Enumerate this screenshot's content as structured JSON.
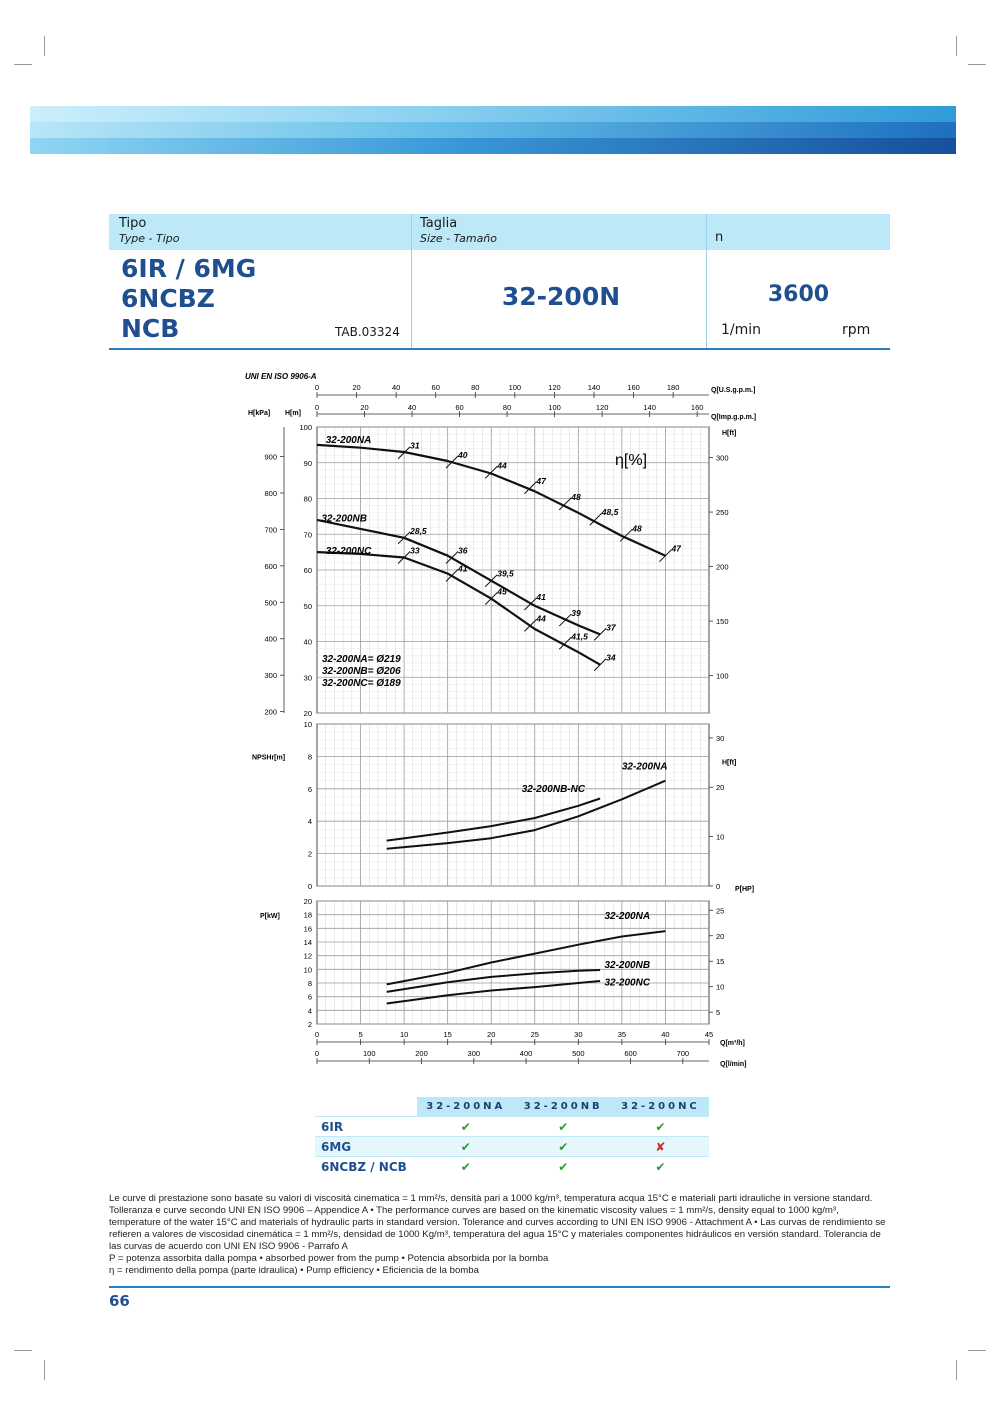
{
  "header": {
    "tipo_label": "Tipo",
    "tipo_sub": "Type - Tipo",
    "tipo_lines": [
      "6IR / 6MG",
      "6NCBZ",
      "NCB"
    ],
    "tab_code": "TAB.03324",
    "taglia_label": "Taglia",
    "taglia_sub": "Size - Tamaño",
    "size_value": "32-200N",
    "n_label": "n",
    "n_value": "3600",
    "n_unit1": "1/min",
    "n_unit2": "rpm"
  },
  "chart_data": {
    "type": "line",
    "standard": "UNI EN ISO 9906-A",
    "x_axes": {
      "q_m3h": {
        "label": "Q[m³/h]",
        "range": [
          0,
          45
        ],
        "ticks": [
          0,
          5,
          10,
          15,
          20,
          25,
          30,
          35,
          40,
          45
        ]
      },
      "q_lmin": {
        "label": "Q[l/min]",
        "ticks": [
          0,
          100,
          200,
          300,
          400,
          500,
          600,
          700
        ]
      },
      "q_usgpm": {
        "label": "Q[U.S.g.p.m.]",
        "ticks": [
          0,
          20,
          40,
          60,
          80,
          100,
          120,
          140,
          160,
          180
        ]
      },
      "q_impgpm": {
        "label": "Q[Imp.g.p.m.]",
        "ticks": [
          0,
          20,
          40,
          60,
          80,
          100,
          120,
          140,
          160
        ]
      }
    },
    "head": {
      "ylabel_m": "H[m]",
      "ylabel_kpa": "H[kPa]",
      "ylabel_ft": "H[ft]",
      "eta_label": "η[%]",
      "ylim": [
        20,
        100
      ],
      "ticks_m": [
        20,
        30,
        40,
        50,
        60,
        70,
        80,
        90,
        100
      ],
      "ticks_kpa": [
        200,
        300,
        400,
        500,
        600,
        700,
        800,
        900
      ],
      "ticks_ft": [
        100,
        150,
        200,
        250,
        300
      ],
      "series": [
        {
          "name": "32-200NA",
          "x": [
            0,
            5,
            10,
            15,
            20,
            25,
            30,
            35,
            40
          ],
          "y": [
            95,
            94.2,
            93,
            90.5,
            87,
            82,
            76,
            69.5,
            64
          ]
        },
        {
          "name": "32-200NB",
          "x": [
            0,
            5,
            10,
            15,
            20,
            25,
            30,
            32.5
          ],
          "y": [
            74,
            71.5,
            69,
            64,
            57,
            50,
            44.5,
            42
          ]
        },
        {
          "name": "32-200NC",
          "x": [
            0,
            5,
            10,
            15,
            20,
            25,
            30,
            32.5
          ],
          "y": [
            65,
            64.5,
            63.5,
            59,
            52,
            43.5,
            37,
            33.5
          ]
        }
      ],
      "eta_marks": [
        {
          "label": "31",
          "x": 10,
          "y": 92.8
        },
        {
          "label": "40",
          "x": 15.5,
          "y": 90.2
        },
        {
          "label": "44",
          "x": 20,
          "y": 87.3
        },
        {
          "label": "47",
          "x": 24.5,
          "y": 83
        },
        {
          "label": "48",
          "x": 28.5,
          "y": 78.5
        },
        {
          "label": "48,5",
          "x": 32,
          "y": 74.2
        },
        {
          "label": "48",
          "x": 35.5,
          "y": 69.7
        },
        {
          "label": "47",
          "x": 40,
          "y": 64
        },
        {
          "label": "28,5",
          "x": 10,
          "y": 69
        },
        {
          "label": "36",
          "x": 15.5,
          "y": 63.5
        },
        {
          "label": "39,5",
          "x": 20,
          "y": 57
        },
        {
          "label": "41",
          "x": 24.5,
          "y": 50.5
        },
        {
          "label": "39",
          "x": 28.5,
          "y": 46
        },
        {
          "label": "37",
          "x": 32.5,
          "y": 42
        },
        {
          "label": "33",
          "x": 10,
          "y": 63.5
        },
        {
          "label": "41",
          "x": 15.5,
          "y": 58.5
        },
        {
          "label": "45",
          "x": 20,
          "y": 52
        },
        {
          "label": "44",
          "x": 24.5,
          "y": 44.5
        },
        {
          "label": "41,5",
          "x": 28.5,
          "y": 39.5
        },
        {
          "label": "34",
          "x": 32.5,
          "y": 33.5
        }
      ],
      "diameters": [
        "32-200NA= Ø219",
        "32-200NB= Ø206",
        "32-200NC= Ø189"
      ]
    },
    "npsh": {
      "ylabel": "NPSHr[m]",
      "ylabel_ft": "H[ft]",
      "ylim": [
        0,
        10
      ],
      "ticks_m": [
        0,
        2,
        4,
        6,
        8,
        10
      ],
      "ticks_ft": [
        0,
        10,
        20,
        30
      ],
      "series": [
        {
          "name": "32-200NA",
          "x": [
            8,
            15,
            20,
            25,
            30,
            35,
            40
          ],
          "y": [
            2.3,
            2.65,
            2.95,
            3.45,
            4.3,
            5.35,
            6.5
          ]
        },
        {
          "name": "32-200NB-NC",
          "x": [
            8,
            15,
            20,
            25,
            30,
            32.5
          ],
          "y": [
            2.8,
            3.3,
            3.7,
            4.2,
            4.95,
            5.4
          ]
        }
      ]
    },
    "power": {
      "ylabel": "P[kW]",
      "ylabel_hp": "P[HP]",
      "ylim": [
        2,
        20
      ],
      "ticks_kw": [
        2,
        4,
        6,
        8,
        10,
        12,
        14,
        16,
        18,
        20
      ],
      "ticks_hp": [
        5,
        10,
        15,
        20,
        25
      ],
      "series": [
        {
          "name": "32-200NA",
          "x": [
            8,
            15,
            20,
            25,
            30,
            35,
            40
          ],
          "y": [
            7.8,
            9.5,
            11,
            12.3,
            13.6,
            14.8,
            15.6
          ]
        },
        {
          "name": "32-200NB",
          "x": [
            8,
            15,
            20,
            25,
            30,
            32.5
          ],
          "y": [
            6.7,
            8.1,
            8.9,
            9.4,
            9.8,
            9.9
          ]
        },
        {
          "name": "32-200NC",
          "x": [
            8,
            15,
            20,
            25,
            30,
            32.5
          ],
          "y": [
            5,
            6.2,
            6.9,
            7.4,
            8,
            8.3
          ]
        }
      ]
    }
  },
  "version_table": {
    "columns": [
      "32-200NA",
      "32-200NB",
      "32-200NC"
    ],
    "rows": [
      {
        "model": "6IR",
        "values": [
          "✔",
          "✔",
          "✔"
        ]
      },
      {
        "model": "6MG",
        "values": [
          "✔",
          "✔",
          "✘"
        ]
      },
      {
        "model": "6NCBZ / NCB",
        "values": [
          "✔",
          "✔",
          "✔"
        ]
      }
    ]
  },
  "notes": {
    "line1": "Le curve di prestazione sono basate su valori di viscosità cinematica = 1 mm²/s, densità pari a 1000 kg/m³, temperatura acqua 15°C e materiali parti idrauliche in versione standard. Tolleranza e curve secondo UNI EN ISO 9906 – Appendice A • The performance curves are based on the kinematic viscosity values = 1 mm²/s, density equal to 1000 kg/m³, temperature of the water 15°C and materials of hydraulic parts in standard version. Tolerance and curves according to UNI EN ISO 9906 - Attachment A • Las curvas de rendimiento se refieren a valores de viscosidad cinemática = 1 mm²/s, densidad de 1000 Kg/m³, temperatura del agua 15°C y materiales componentes hidráulicos en versión standard. Tolerancia de las curvas de acuerdo con UNI EN ISO 9906 - Parrafo A",
    "line2": "P = potenza assorbita dalla pompa • absorbed power from the pump • Potencia absorbida por la bomba",
    "line3": "η = rendimento della pompa (parte idraulica) • Pump efficiency • Eficiencia de la bomba"
  },
  "page_number": "66"
}
